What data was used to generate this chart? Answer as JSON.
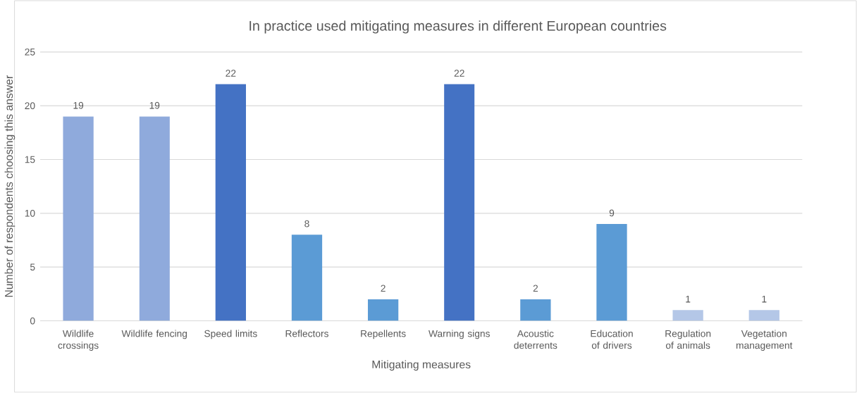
{
  "chart_data": {
    "type": "bar",
    "title": "In practice used mitigating measures in different European countries",
    "xlabel": "Mitigating measures",
    "ylabel": "Number of respondents choosing this answer",
    "categories": [
      "Wildlife crossings",
      "Wildlife fencing",
      "Speed limits",
      "Reflectors",
      "Repellents",
      "Warning signs",
      "Acoustic deterrents",
      "Education of drivers",
      "Regulation of animals",
      "Vegetation management"
    ],
    "values": [
      19,
      19,
      22,
      8,
      2,
      22,
      2,
      9,
      1,
      1
    ],
    "colors": [
      "#8faadc",
      "#8faadc",
      "#4472c4",
      "#5b9bd5",
      "#5b9bd5",
      "#4472c4",
      "#5b9bd5",
      "#5b9bd5",
      "#b4c7e7",
      "#b4c7e7"
    ],
    "ylim": [
      0,
      25
    ],
    "yticks": [
      0,
      5,
      10,
      15,
      20,
      25
    ],
    "grid": "y",
    "data_labels": true
  }
}
